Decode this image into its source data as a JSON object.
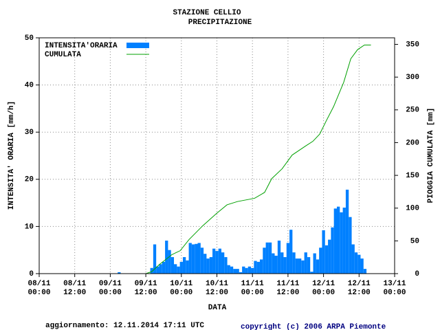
{
  "chart_data": {
    "type": "bar",
    "title": "STAZIONE CELLIO",
    "subtitle": "PRECIPITAZIONE",
    "xlabel": "DATA",
    "ylabel": "INTENSITA' ORARIA [mm/h]",
    "y2label": "PIOGGIA CUMULATA [mm]",
    "footer_left": "aggiornamento: 12.11.2014 17:11 UTC",
    "footer_right": "copyright (c) 2006 ARPA Piemonte",
    "xlim": [
      0,
      120
    ],
    "xticks": [
      {
        "value": 0,
        "label": "08/11\n00:00"
      },
      {
        "value": 12,
        "label": "08/11\n12:00"
      },
      {
        "value": 24,
        "label": "09/11\n00:00"
      },
      {
        "value": 36,
        "label": "09/11\n12:00"
      },
      {
        "value": 48,
        "label": "10/11\n00:00"
      },
      {
        "value": 60,
        "label": "10/11\n12:00"
      },
      {
        "value": 72,
        "label": "11/11\n00:00"
      },
      {
        "value": 84,
        "label": "11/11\n12:00"
      },
      {
        "value": 96,
        "label": "12/11\n00:00"
      },
      {
        "value": 108,
        "label": "12/11\n12:00"
      },
      {
        "value": 120,
        "label": "13/11\n00:00"
      }
    ],
    "ylim": [
      0,
      50
    ],
    "yticks": [
      0,
      10,
      20,
      30,
      40,
      50
    ],
    "y2lim": [
      0,
      360
    ],
    "y2ticks": [
      0,
      50,
      100,
      150,
      200,
      250,
      300,
      350
    ],
    "grid": true,
    "legend": "upper left",
    "series": [
      {
        "name": "INTENSITA'ORARIA",
        "color": "#0080ff",
        "type": "bar",
        "x": [
          27,
          38,
          39,
          40,
          41,
          42,
          43,
          44,
          45,
          46,
          47,
          48,
          49,
          50,
          51,
          52,
          53,
          54,
          55,
          56,
          57,
          58,
          59,
          60,
          61,
          62,
          63,
          64,
          65,
          66,
          67,
          68,
          69,
          70,
          71,
          72,
          73,
          74,
          75,
          76,
          77,
          78,
          79,
          80,
          81,
          82,
          83,
          84,
          85,
          86,
          87,
          88,
          89,
          90,
          91,
          92,
          93,
          94,
          95,
          96,
          97,
          98,
          99,
          100,
          101,
          102,
          103,
          104,
          105,
          106,
          107,
          108,
          109,
          110
        ],
        "values": [
          0.3,
          1.2,
          6.2,
          1.5,
          2,
          2.5,
          7,
          5,
          3.5,
          2,
          1.5,
          2.5,
          3.5,
          2.8,
          6.5,
          6.2,
          6.3,
          6.5,
          5.5,
          4.2,
          3.2,
          3.5,
          5.3,
          4.8,
          5.3,
          4.5,
          3.5,
          1.8,
          1.5,
          1,
          1,
          0.3,
          1.5,
          1.2,
          1.5,
          1.2,
          2.7,
          2.5,
          3,
          5.5,
          6.6,
          6.6,
          4.3,
          3.8,
          7,
          4.5,
          3.5,
          6.5,
          9.3,
          4.5,
          3.2,
          3.2,
          2.8,
          4.5,
          3.5,
          0.4,
          4.3,
          3,
          5.5,
          9.2,
          6,
          7.2,
          9.8,
          13.8,
          14.2,
          13,
          14,
          17.8,
          12,
          6.2,
          4.5,
          4,
          3.2,
          1
        ]
      },
      {
        "name": "CUMULATA",
        "color": "#00a000",
        "type": "line",
        "axis": "y2",
        "x": [
          36,
          38,
          40.6,
          44.8,
          47.6,
          50.6,
          55.2,
          59.9,
          63.4,
          66.9,
          72.7,
          76.1,
          78.5,
          82,
          85.4,
          90,
          92.4,
          94.7,
          97,
          99.4,
          102.8,
          105.2,
          107.5,
          109.8,
          112
        ],
        "values": [
          0,
          3,
          14,
          29,
          35,
          52,
          73,
          92,
          105,
          110,
          115,
          124,
          145,
          160,
          181,
          195,
          202,
          213,
          234,
          255,
          292,
          328,
          342,
          349,
          349
        ]
      }
    ]
  }
}
